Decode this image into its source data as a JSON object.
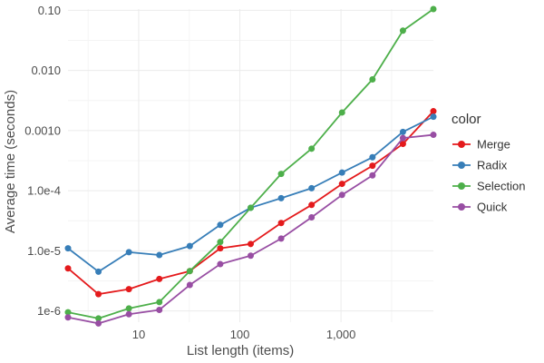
{
  "chart_data": {
    "type": "line",
    "xlabel": "List length (items)",
    "ylabel": "Average time (seconds)",
    "x_scale": "log",
    "y_scale": "log",
    "xlim": [
      2,
      8192
    ],
    "ylim": [
      6.5e-07,
      0.105
    ],
    "grid": true,
    "x_ticks": [
      {
        "value": 10,
        "label": "10"
      },
      {
        "value": 100,
        "label": "100"
      },
      {
        "value": 1000,
        "label": "1,000"
      }
    ],
    "y_ticks": [
      {
        "value": 1e-06,
        "label": "1e-6"
      },
      {
        "value": 1e-05,
        "label": "1.0e-5"
      },
      {
        "value": 0.0001,
        "label": "1.0e-4"
      },
      {
        "value": 0.001,
        "label": "0.0010"
      },
      {
        "value": 0.01,
        "label": "0.010"
      },
      {
        "value": 0.1,
        "label": "0.10"
      }
    ],
    "legend": {
      "title": "color",
      "position": "right"
    },
    "x": [
      2,
      4,
      8,
      16,
      32,
      64,
      128,
      256,
      512,
      1024,
      2048,
      4096,
      8192
    ],
    "series": [
      {
        "name": "Merge",
        "color": "#e41a1c",
        "values": [
          5.1e-06,
          1.9e-06,
          2.3e-06,
          3.4e-06,
          4.6e-06,
          1.1e-05,
          1.3e-05,
          2.9e-05,
          5.8e-05,
          0.00013,
          0.00026,
          0.0006,
          0.0021
        ]
      },
      {
        "name": "Radix",
        "color": "#377eb8",
        "values": [
          1.1e-05,
          4.5e-06,
          9.5e-06,
          8.5e-06,
          1.2e-05,
          2.7e-05,
          5.2e-05,
          7.5e-05,
          0.00011,
          0.0002,
          0.00036,
          0.00095,
          0.0017
        ]
      },
      {
        "name": "Selection",
        "color": "#4daf4a",
        "values": [
          9.5e-07,
          7.5e-07,
          1.1e-06,
          1.4e-06,
          4.6e-06,
          1.4e-05,
          5.2e-05,
          0.00019,
          0.0005,
          0.002,
          0.0071,
          0.046,
          0.105
        ]
      },
      {
        "name": "Quick",
        "color": "#984ea3",
        "values": [
          7.8e-07,
          6.2e-07,
          8.8e-07,
          1.04e-06,
          2.7e-06,
          6e-06,
          8.3e-06,
          1.6e-05,
          3.6e-05,
          8.5e-05,
          0.00018,
          0.00075,
          0.00085
        ]
      }
    ]
  }
}
